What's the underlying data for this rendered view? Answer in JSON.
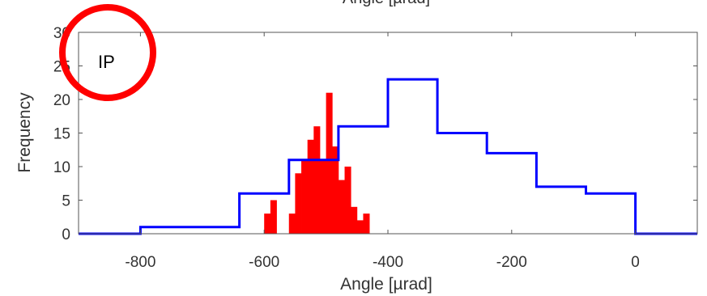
{
  "chart_data": {
    "type": "histogram",
    "top_label": "Angle [µrad]",
    "xlabel": "Angle [µrad]",
    "ylabel": "Frequency",
    "xlim": [
      -900,
      100
    ],
    "ylim": [
      0,
      30
    ],
    "xticks": [
      -800,
      -600,
      -400,
      -200,
      0
    ],
    "yticks": [
      0,
      5,
      10,
      15,
      20,
      25,
      30
    ],
    "grid": false,
    "annotation": {
      "text": "IP",
      "circled": true,
      "circle_color": "#ff0000"
    },
    "series": [
      {
        "style": "step-outline",
        "color": "#0000ff",
        "bin_edges": [
          -900,
          -800,
          -640,
          -560,
          -480,
          -400,
          -320,
          -240,
          -160,
          -80,
          0,
          100
        ],
        "counts": [
          0,
          1,
          6,
          11,
          16,
          23,
          15,
          12,
          7,
          6,
          0
        ]
      },
      {
        "style": "filled-bars",
        "color": "#ff0000",
        "bin_edges": [
          -600,
          -590,
          -580,
          -570,
          -560,
          -550,
          -540,
          -530,
          -520,
          -510,
          -500,
          -490,
          -480,
          -470,
          -460,
          -450,
          -440,
          -430,
          -420,
          -410,
          -400
        ],
        "counts": [
          3,
          5,
          0,
          0,
          3,
          9,
          11,
          14,
          16,
          11,
          21,
          13,
          8,
          10,
          4,
          2,
          3,
          0,
          0,
          0
        ]
      }
    ]
  }
}
